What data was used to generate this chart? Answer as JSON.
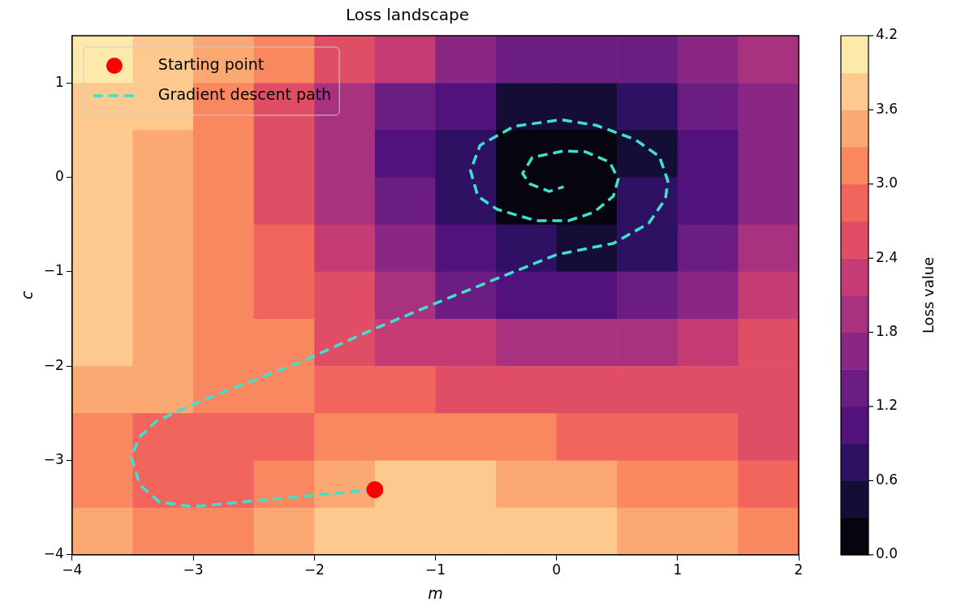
{
  "chart_data": {
    "type": "heatmap",
    "title": "Loss landscape",
    "xlabel": "m",
    "ylabel": "c",
    "clabel": "Loss value",
    "xlim": [
      -4,
      2
    ],
    "ylim": [
      -4,
      1.5
    ],
    "xticks": [
      -4,
      -3,
      -2,
      -1,
      0,
      1,
      2
    ],
    "yticks": [
      -4,
      -3,
      -2,
      -1,
      0,
      1
    ],
    "clim": [
      0,
      4.2
    ],
    "cticks": [
      {
        "value": 0,
        "label": "0.0"
      },
      0.6,
      1.2,
      1.8,
      2.4,
      {
        "value": 3,
        "label": "3.0"
      },
      3.6,
      4.2
    ],
    "grid": false,
    "legend": "top left",
    "cells": [
      [
        3.95,
        3.75,
        3.45,
        3.1,
        2.6,
        2.1,
        1.65,
        1.4,
        1.3,
        1.35,
        1.65,
        2.05
      ],
      [
        3.75,
        3.6,
        3.2,
        2.6,
        2.0,
        1.3,
        0.9,
        0.55,
        0.5,
        0.85,
        1.2,
        1.7
      ],
      [
        3.75,
        3.55,
        3.15,
        2.6,
        1.95,
        1.15,
        0.75,
        0.2,
        0.15,
        0.5,
        1.0,
        1.6
      ],
      [
        3.75,
        3.55,
        3.15,
        2.65,
        2.0,
        1.2,
        0.75,
        0.2,
        0.2,
        0.6,
        1.05,
        1.75
      ],
      [
        3.75,
        3.55,
        3.25,
        2.75,
        2.25,
        1.7,
        1.05,
        0.75,
        0.45,
        0.8,
        1.3,
        1.95
      ],
      [
        3.75,
        3.55,
        3.3,
        2.9,
        2.45,
        1.9,
        1.45,
        1.05,
        1.0,
        1.2,
        1.65,
        2.1
      ],
      [
        3.7,
        3.45,
        3.2,
        3.0,
        2.6,
        2.2,
        2.15,
        2.05,
        1.95,
        1.95,
        2.2,
        2.5
      ],
      [
        3.45,
        3.35,
        3.05,
        3.1,
        2.85,
        2.8,
        2.6,
        2.5,
        2.5,
        2.45,
        2.45,
        2.5
      ],
      [
        3.2,
        2.85,
        2.8,
        2.95,
        3.15,
        3.25,
        3.1,
        3.0,
        2.9,
        2.85,
        2.7,
        2.6
      ],
      [
        3.15,
        2.85,
        2.8,
        3.1,
        3.4,
        3.6,
        3.6,
        3.5,
        3.4,
        3.15,
        3.0,
        2.85
      ],
      [
        3.5,
        3.3,
        3.2,
        3.45,
        3.7,
        3.75,
        3.8,
        3.75,
        3.7,
        3.55,
        3.4,
        3.25
      ]
    ],
    "series": [
      {
        "name": "Gradient descent path",
        "type": "line",
        "color": "#40e0d0",
        "line_style": "dashed",
        "marker": "none",
        "x": [
          -1.5,
          -2.1,
          -2.67,
          -3.01,
          -3.28,
          -3.44,
          -3.51,
          -3.45,
          -3.31,
          -3.01,
          -2.58,
          -2.1,
          -1.53,
          -0.97,
          0.0,
          0.47,
          0.76,
          0.9,
          0.92,
          0.85,
          0.65,
          0.33,
          0.04,
          -0.35,
          -0.63,
          -0.71,
          -0.65,
          -0.49,
          -0.17,
          0.1,
          0.31,
          0.47,
          0.51,
          0.44,
          0.24,
          0.06,
          -0.2,
          -0.28,
          -0.22,
          -0.06,
          0.06
        ],
        "values": [
          -3.31,
          -3.38,
          -3.45,
          -3.49,
          -3.44,
          -3.26,
          -2.97,
          -2.76,
          -2.59,
          -2.41,
          -2.19,
          -1.95,
          -1.62,
          -1.32,
          -0.82,
          -0.7,
          -0.49,
          -0.23,
          -0.04,
          0.22,
          0.4,
          0.55,
          0.61,
          0.54,
          0.34,
          0.07,
          -0.2,
          -0.34,
          -0.46,
          -0.46,
          -0.37,
          -0.2,
          -0.02,
          0.16,
          0.27,
          0.28,
          0.21,
          0.04,
          -0.07,
          -0.15,
          -0.1
        ]
      },
      {
        "name": "Starting point",
        "type": "scatter",
        "color": "#ff0000",
        "marker": "circle",
        "x": [
          -1.5
        ],
        "values": [
          -3.31
        ]
      }
    ]
  }
}
